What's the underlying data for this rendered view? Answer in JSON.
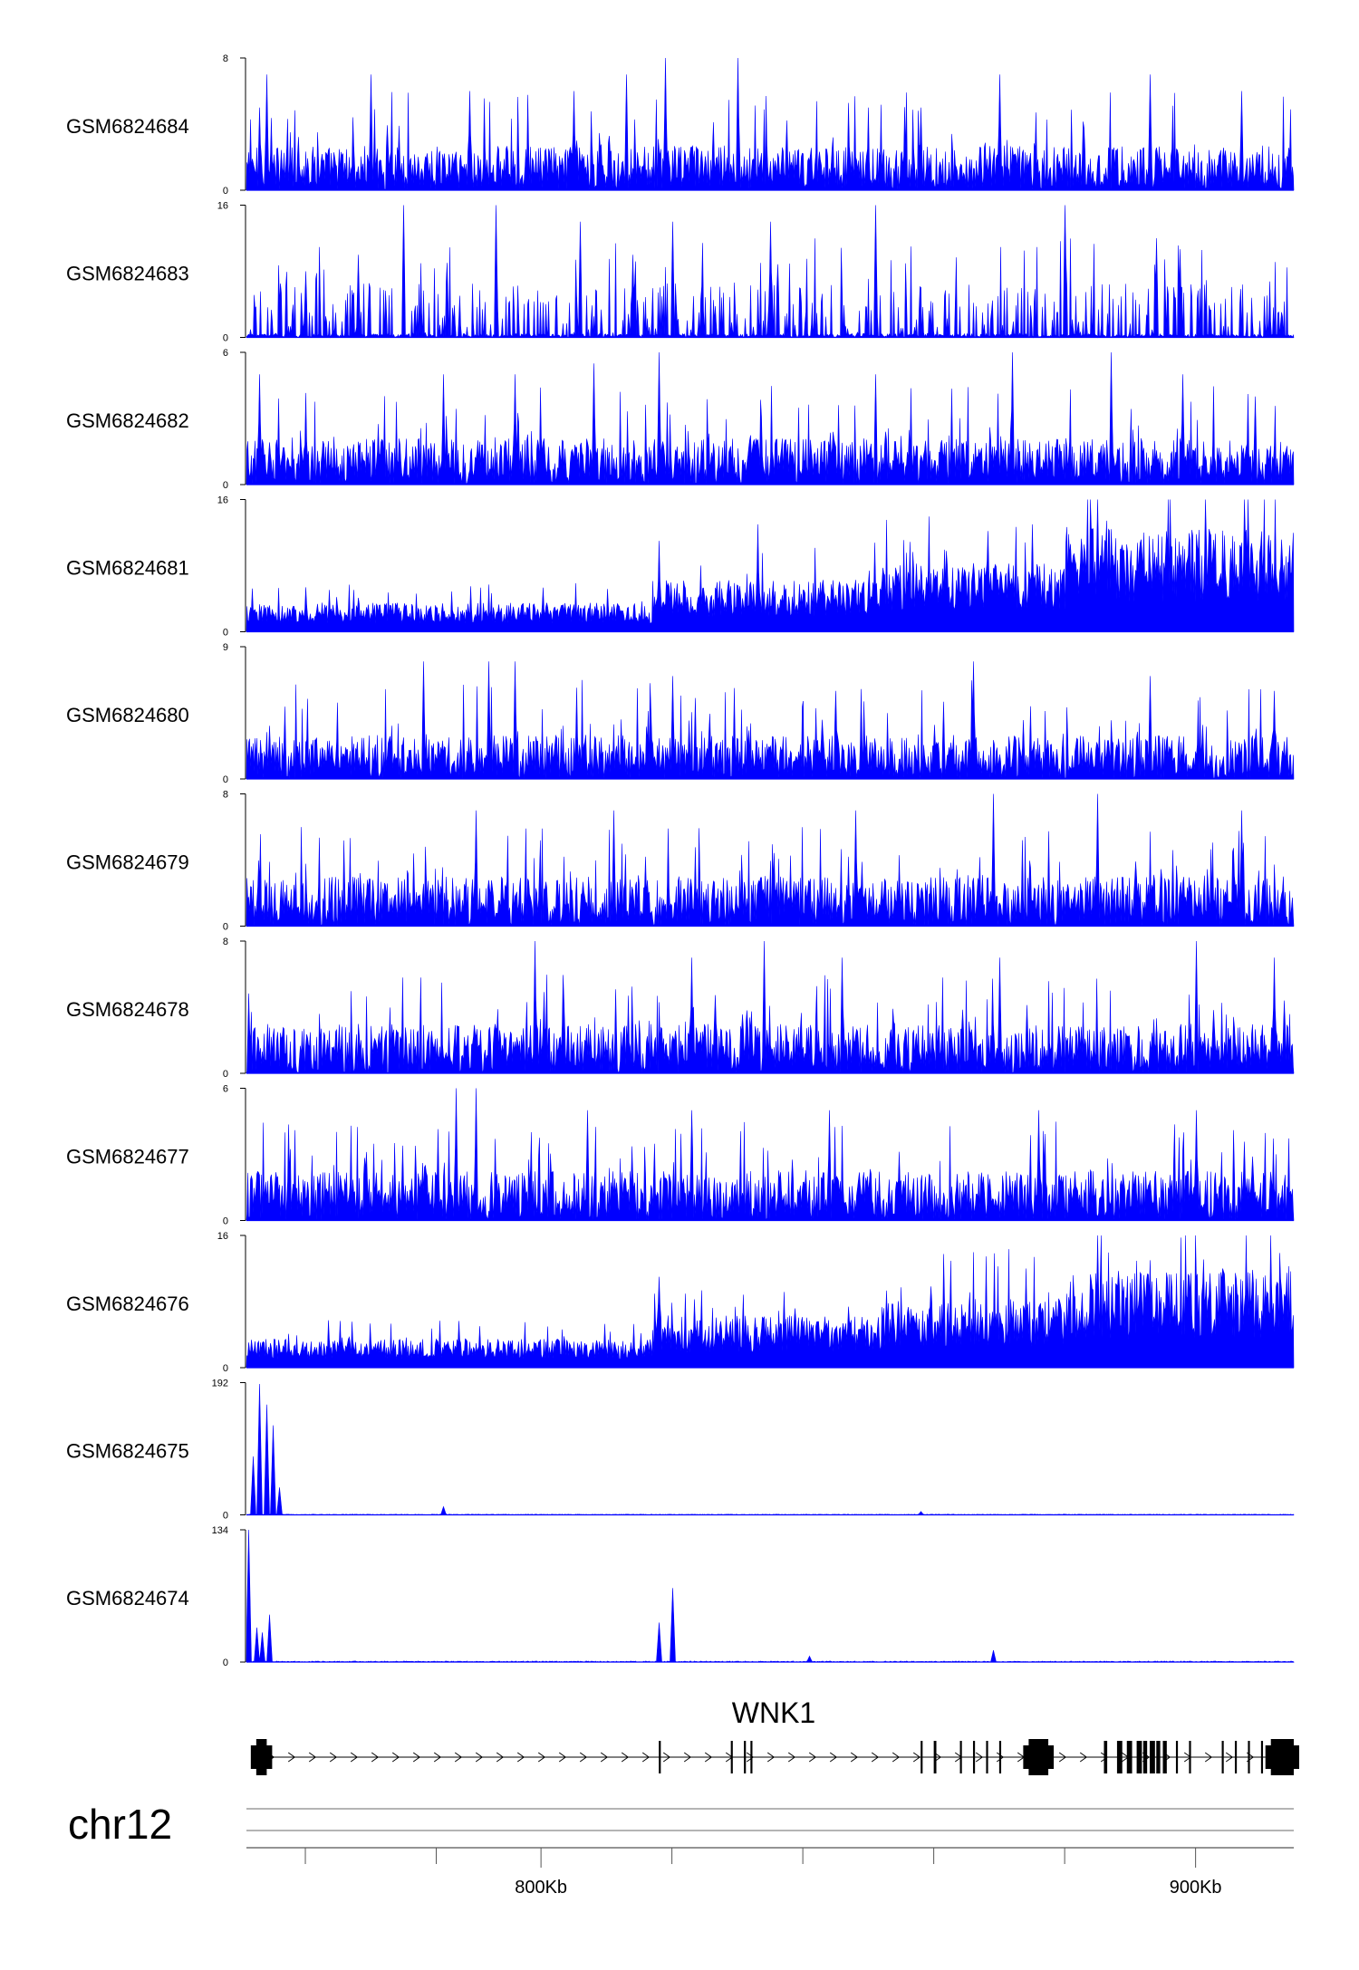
{
  "chart_data": {
    "type": "area",
    "chromosome": "chr12",
    "genomic_range_kb": [
      755,
      915
    ],
    "x_tick_labels": [
      {
        "kb": 800,
        "label": "800Kb"
      },
      {
        "kb": 900,
        "label": "900Kb"
      }
    ],
    "x_minor_ticks_kb": [
      764,
      784,
      820,
      840,
      860,
      880
    ],
    "series_color": "#0000ff",
    "tracks": [
      {
        "label": "GSM6824684",
        "ymin": 0,
        "ymax": 8,
        "profile": "spiky",
        "baseline": 1.8,
        "peaks": [
          {
            "kb": 757,
            "v": 5
          },
          {
            "kb": 758,
            "v": 7
          },
          {
            "kb": 774,
            "v": 7
          },
          {
            "kb": 789,
            "v": 6
          },
          {
            "kb": 805,
            "v": 6
          },
          {
            "kb": 813,
            "v": 7
          },
          {
            "kb": 819,
            "v": 8
          },
          {
            "kb": 830,
            "v": 8
          },
          {
            "kb": 858,
            "v": 5
          },
          {
            "kb": 870,
            "v": 7
          },
          {
            "kb": 893,
            "v": 7
          },
          {
            "kb": 907,
            "v": 6
          }
        ]
      },
      {
        "label": "GSM6824683",
        "ymin": 0,
        "ymax": 16,
        "profile": "spiky_sparse",
        "baseline": 3,
        "peaks": [
          {
            "kb": 764,
            "v": 8
          },
          {
            "kb": 772,
            "v": 10
          },
          {
            "kb": 779,
            "v": 16
          },
          {
            "kb": 793,
            "v": 16
          },
          {
            "kb": 806,
            "v": 14
          },
          {
            "kb": 814,
            "v": 10
          },
          {
            "kb": 820,
            "v": 14
          },
          {
            "kb": 835,
            "v": 14
          },
          {
            "kb": 851,
            "v": 16
          },
          {
            "kb": 880,
            "v": 16
          },
          {
            "kb": 894,
            "v": 12
          }
        ]
      },
      {
        "label": "GSM6824682",
        "ymin": 0,
        "ymax": 6,
        "profile": "spiky",
        "baseline": 1.4,
        "peaks": [
          {
            "kb": 757,
            "v": 5
          },
          {
            "kb": 785,
            "v": 5
          },
          {
            "kb": 796,
            "v": 5
          },
          {
            "kb": 808,
            "v": 5.5
          },
          {
            "kb": 818,
            "v": 6
          },
          {
            "kb": 851,
            "v": 5
          },
          {
            "kb": 872,
            "v": 6
          },
          {
            "kb": 887,
            "v": 6
          },
          {
            "kb": 898,
            "v": 5
          },
          {
            "kb": 909,
            "v": 4
          }
        ]
      },
      {
        "label": "GSM6824681",
        "ymin": 0,
        "ymax": 16,
        "profile": "regional",
        "segments": [
          {
            "from": 755,
            "to": 817,
            "level": 2.5
          },
          {
            "from": 817,
            "to": 852,
            "level": 4.5
          },
          {
            "from": 852,
            "to": 880,
            "level": 6
          },
          {
            "from": 880,
            "to": 915,
            "level": 9
          }
        ],
        "peaks": [
          {
            "kb": 818,
            "v": 11
          },
          {
            "kb": 833,
            "v": 13
          },
          {
            "kb": 875,
            "v": 13
          },
          {
            "kb": 885,
            "v": 16
          },
          {
            "kb": 892,
            "v": 12
          }
        ]
      },
      {
        "label": "GSM6824680",
        "ymin": 0,
        "ymax": 9,
        "profile": "spiky",
        "baseline": 2,
        "peaks": [
          {
            "kb": 782,
            "v": 8
          },
          {
            "kb": 792,
            "v": 8
          },
          {
            "kb": 796,
            "v": 8
          },
          {
            "kb": 820,
            "v": 7
          },
          {
            "kb": 845,
            "v": 6
          },
          {
            "kb": 866,
            "v": 8
          },
          {
            "kb": 893,
            "v": 7
          },
          {
            "kb": 912,
            "v": 6
          }
        ]
      },
      {
        "label": "GSM6824679",
        "ymin": 0,
        "ymax": 8,
        "profile": "spiky",
        "baseline": 2,
        "peaks": [
          {
            "kb": 790,
            "v": 7
          },
          {
            "kb": 811,
            "v": 7
          },
          {
            "kb": 848,
            "v": 7
          },
          {
            "kb": 869,
            "v": 8
          },
          {
            "kb": 885,
            "v": 8
          },
          {
            "kb": 907,
            "v": 7
          }
        ]
      },
      {
        "label": "GSM6824678",
        "ymin": 0,
        "ymax": 8,
        "profile": "spiky",
        "baseline": 2,
        "peaks": [
          {
            "kb": 799,
            "v": 8
          },
          {
            "kb": 823,
            "v": 7
          },
          {
            "kb": 834,
            "v": 8
          },
          {
            "kb": 846,
            "v": 7
          },
          {
            "kb": 870,
            "v": 7
          },
          {
            "kb": 900,
            "v": 8
          },
          {
            "kb": 912,
            "v": 7
          }
        ]
      },
      {
        "label": "GSM6824677",
        "ymin": 0,
        "ymax": 6,
        "profile": "spiky",
        "baseline": 1.5,
        "peaks": [
          {
            "kb": 787,
            "v": 6
          },
          {
            "kb": 790,
            "v": 6
          },
          {
            "kb": 807,
            "v": 5
          },
          {
            "kb": 823,
            "v": 5
          },
          {
            "kb": 844,
            "v": 5
          },
          {
            "kb": 876,
            "v": 5
          },
          {
            "kb": 900,
            "v": 5
          }
        ]
      },
      {
        "label": "GSM6824676",
        "ymin": 0,
        "ymax": 16,
        "profile": "regional",
        "segments": [
          {
            "from": 755,
            "to": 817,
            "level": 2.5
          },
          {
            "from": 817,
            "to": 852,
            "level": 4.5
          },
          {
            "from": 852,
            "to": 880,
            "level": 6
          },
          {
            "from": 880,
            "to": 915,
            "level": 8.5
          }
        ],
        "peaks": [
          {
            "kb": 818,
            "v": 11
          },
          {
            "kb": 874,
            "v": 12
          },
          {
            "kb": 885,
            "v": 16
          },
          {
            "kb": 893,
            "v": 13
          },
          {
            "kb": 904,
            "v": 12
          }
        ]
      },
      {
        "label": "GSM6824675",
        "ymin": 0,
        "ymax": 192,
        "profile": "flat",
        "baseline": 1,
        "peaks": [
          {
            "kb": 756,
            "v": 85
          },
          {
            "kb": 757,
            "v": 190
          },
          {
            "kb": 758,
            "v": 160
          },
          {
            "kb": 759,
            "v": 130
          },
          {
            "kb": 760,
            "v": 40
          },
          {
            "kb": 785,
            "v": 12
          },
          {
            "kb": 858,
            "v": 5
          }
        ]
      },
      {
        "label": "GSM6824674",
        "ymin": 0,
        "ymax": 134,
        "profile": "flat",
        "baseline": 1,
        "peaks": [
          {
            "kb": 755.3,
            "v": 134
          },
          {
            "kb": 756.5,
            "v": 35
          },
          {
            "kb": 757.3,
            "v": 30
          },
          {
            "kb": 758.5,
            "v": 48
          },
          {
            "kb": 818,
            "v": 40
          },
          {
            "kb": 820,
            "v": 75
          },
          {
            "kb": 841,
            "v": 6
          },
          {
            "kb": 869,
            "v": 12
          }
        ]
      }
    ]
  },
  "gene_track": {
    "name": "WNK1",
    "strand": "+",
    "start_kb": 756,
    "end_kb": 914,
    "exons_kb": [
      {
        "kb": 756.5,
        "w": 1.6,
        "tall": true
      },
      {
        "kb": 818,
        "w": 0.3
      },
      {
        "kb": 829,
        "w": 0.3
      },
      {
        "kb": 831,
        "w": 0.3
      },
      {
        "kb": 832,
        "w": 0.3
      },
      {
        "kb": 858,
        "w": 0.3
      },
      {
        "kb": 860,
        "w": 0.4
      },
      {
        "kb": 864,
        "w": 0.3
      },
      {
        "kb": 866,
        "w": 0.3
      },
      {
        "kb": 868,
        "w": 0.3
      },
      {
        "kb": 870,
        "w": 0.3
      },
      {
        "kb": 874.5,
        "w": 3,
        "tall": true
      },
      {
        "kb": 886,
        "w": 0.5
      },
      {
        "kb": 888,
        "w": 0.8
      },
      {
        "kb": 889.5,
        "w": 0.8
      },
      {
        "kb": 891,
        "w": 0.8
      },
      {
        "kb": 892,
        "w": 0.6
      },
      {
        "kb": 893,
        "w": 0.8
      },
      {
        "kb": 894,
        "w": 0.6
      },
      {
        "kb": 895,
        "w": 0.6
      },
      {
        "kb": 897,
        "w": 0.3
      },
      {
        "kb": 899,
        "w": 0.3
      },
      {
        "kb": 904,
        "w": 0.3
      },
      {
        "kb": 906,
        "w": 0.3
      },
      {
        "kb": 908,
        "w": 0.3
      },
      {
        "kb": 910,
        "w": 0.3
      },
      {
        "kb": 911.5,
        "w": 3.5,
        "tall": true
      }
    ]
  }
}
